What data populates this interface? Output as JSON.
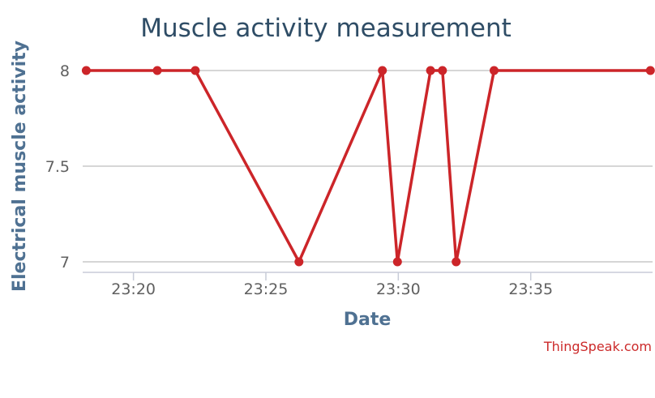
{
  "chart_data": {
    "type": "line",
    "title": "Muscle activity measurement",
    "xlabel": "Date",
    "ylabel": "Electrical muscle activity",
    "credits": "ThingSpeak.com",
    "x_axis_type": "time",
    "x_ticks": [
      "23:20",
      "23:25",
      "23:30",
      "23:35"
    ],
    "y_ticks": [
      7,
      7.5,
      8
    ],
    "ylim": [
      6.95,
      8.05
    ],
    "xlim": [
      "23:18:05",
      "23:39:36"
    ],
    "grid": true,
    "legend": false,
    "series": [
      {
        "color": "#cc2529",
        "points": [
          {
            "x": "23:18:13",
            "y": 8
          },
          {
            "x": "23:20:54",
            "y": 8
          },
          {
            "x": "23:22:20",
            "y": 8
          },
          {
            "x": "23:26:15",
            "y": 7
          },
          {
            "x": "23:29:24",
            "y": 8
          },
          {
            "x": "23:29:58",
            "y": 7
          },
          {
            "x": "23:31:13",
            "y": 8
          },
          {
            "x": "23:31:40",
            "y": 8
          },
          {
            "x": "23:32:11",
            "y": 7
          },
          {
            "x": "23:33:37",
            "y": 8
          },
          {
            "x": "23:39:31",
            "y": 8
          }
        ]
      }
    ]
  }
}
